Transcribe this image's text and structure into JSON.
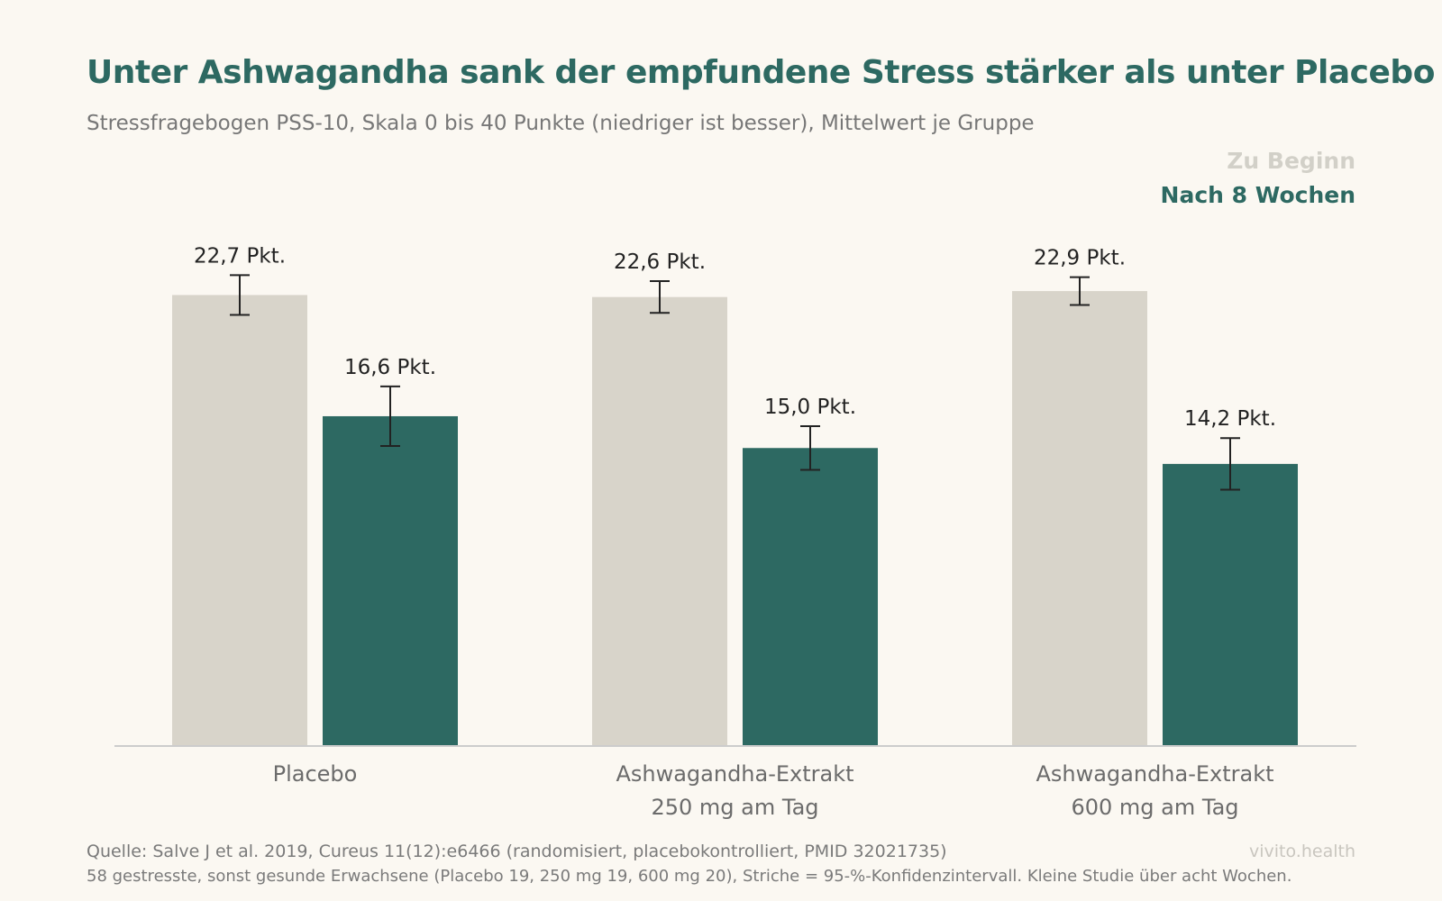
{
  "title": "Unter Ashwagandha sank der empfundene Stress stärker als unter Placebo",
  "subtitle": "Stressfragebogen PSS-10, Skala 0 bis 40 Punkte (niedriger ist besser), Mittelwert je Gruppe",
  "legend": {
    "before": "Zu Beginn",
    "after": "Nach 8 Wochen"
  },
  "chart_data": {
    "type": "bar",
    "categories": [
      [
        "Placebo"
      ],
      [
        "Ashwagandha-Extrakt",
        "250 mg am Tag"
      ],
      [
        "Ashwagandha-Extrakt",
        "600 mg am Tag"
      ]
    ],
    "series": [
      {
        "name": "Zu Beginn",
        "color": "#d8d4ca",
        "values": [
          22.7,
          22.6,
          22.9
        ],
        "ci_low": [
          21.7,
          21.8,
          22.2
        ],
        "ci_high": [
          23.7,
          23.4,
          23.6
        ],
        "labels": [
          "22,7 Pkt.",
          "22,6 Pkt.",
          "22,9 Pkt."
        ]
      },
      {
        "name": "Nach 8 Wochen",
        "color": "#2d6962",
        "values": [
          16.6,
          15.0,
          14.2
        ],
        "ci_low": [
          15.1,
          13.9,
          12.9
        ],
        "ci_high": [
          18.1,
          16.1,
          15.5
        ],
        "labels": [
          "16,6 Pkt.",
          "15,0 Pkt.",
          "14,2 Pkt."
        ]
      }
    ],
    "ylim": [
      0,
      40
    ],
    "grid": false,
    "legend_position": "top-right",
    "axis_color": "#cccccc",
    "errorbar_color": "#222222"
  },
  "footer": {
    "source": "Quelle: Salve J et al. 2019, Cureus 11(12):e6466 (randomisiert, placebokontrolliert, PMID 32021735)",
    "note": "58 gestresste, sonst gesunde Erwachsene (Placebo 19, 250 mg 19, 600 mg 20), Striche = 95-%-Konfidenzintervall. Kleine Studie über acht Wochen.",
    "brand": "vivito.health"
  }
}
